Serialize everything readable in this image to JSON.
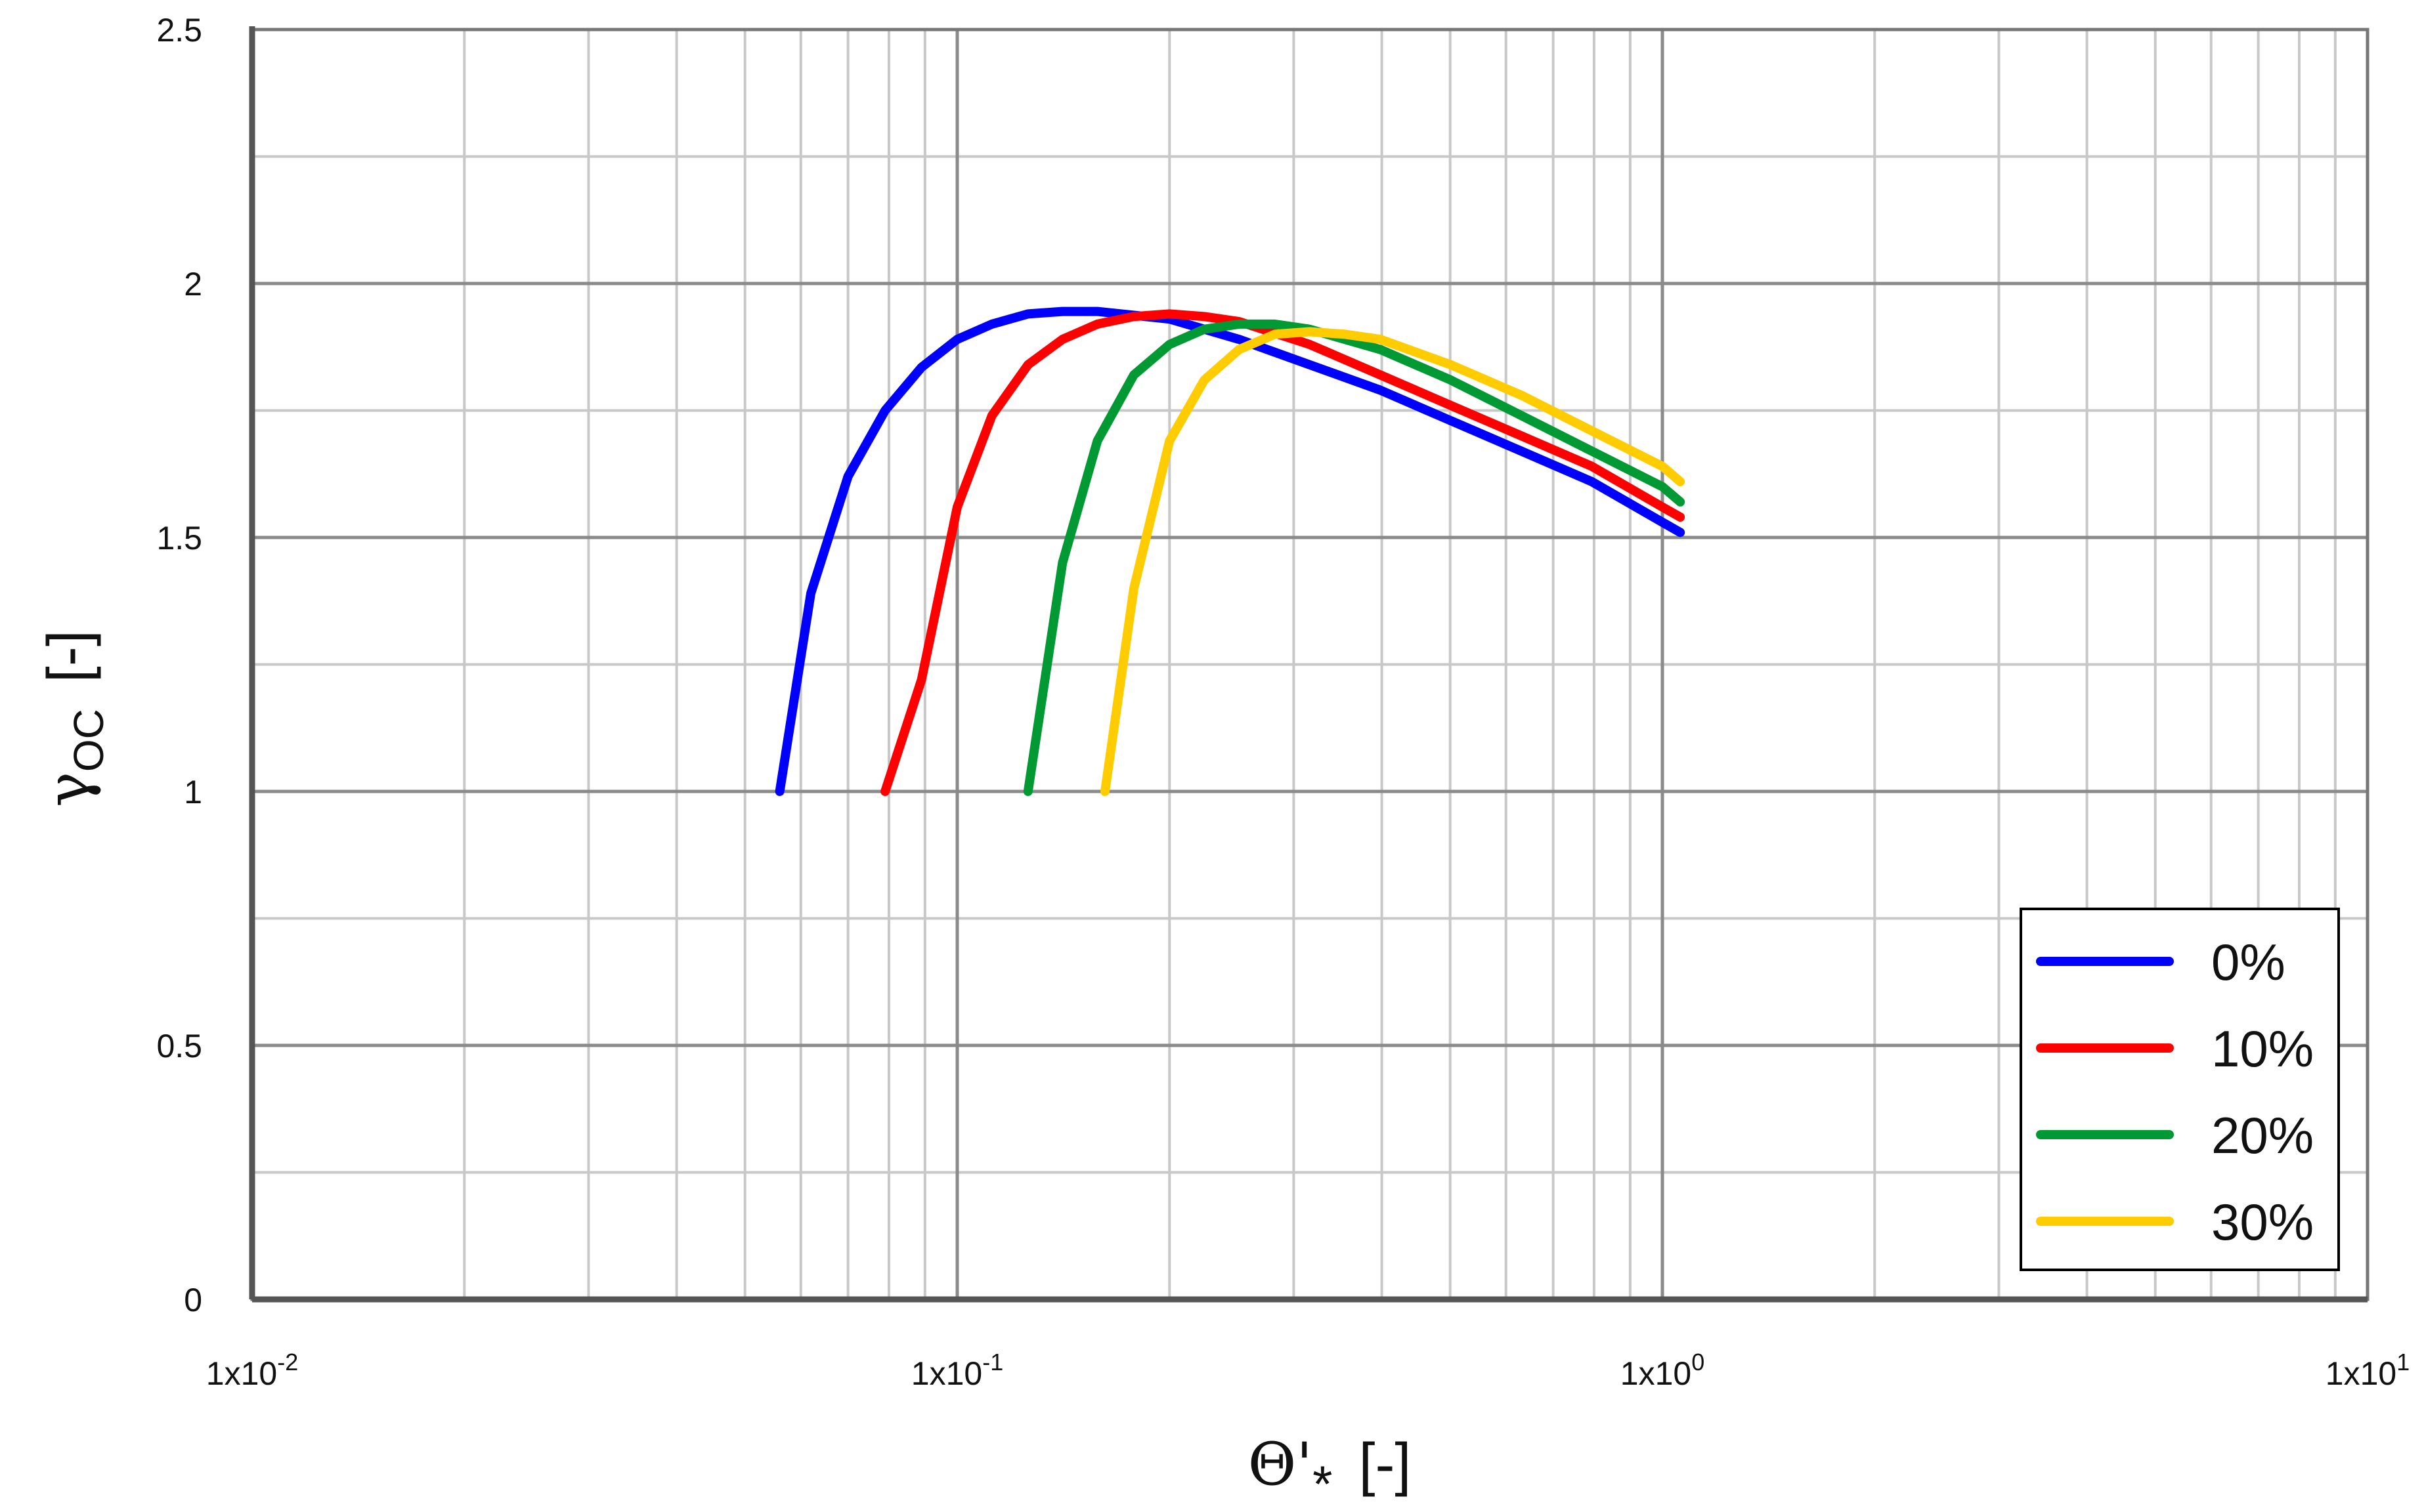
{
  "chart_data": {
    "type": "line",
    "xscale": "log",
    "xlim": [
      0.01,
      10
    ],
    "ylim": [
      0,
      2.5
    ],
    "grid": true,
    "legend_position": "bottom-right",
    "ylabel": {
      "symbol": "γ",
      "sub": "OC",
      "unit": "[-]"
    },
    "xlabel": {
      "symbol": "Θ'",
      "sub": "*",
      "unit": "[-]"
    },
    "x_ticks": [
      {
        "value": 0.01,
        "base": "1x10",
        "exp": "-2"
      },
      {
        "value": 0.1,
        "base": "1x10",
        "exp": "-1"
      },
      {
        "value": 1,
        "base": "1x10",
        "exp": "0"
      },
      {
        "value": 10,
        "base": "1x10",
        "exp": "1"
      }
    ],
    "y_ticks": [
      {
        "value": 0,
        "label": "0"
      },
      {
        "value": 0.5,
        "label": "0.5"
      },
      {
        "value": 1,
        "label": "1"
      },
      {
        "value": 1.5,
        "label": "1.5"
      },
      {
        "value": 2,
        "label": "2"
      },
      {
        "value": 2.5,
        "label": "2.5"
      }
    ],
    "series": [
      {
        "name": "0%",
        "color": "#0000ff",
        "x": [
          0.056,
          0.062,
          0.07,
          0.079,
          0.089,
          0.1,
          0.112,
          0.126,
          0.141,
          0.158,
          0.2,
          0.251,
          0.316,
          0.398,
          0.501,
          0.631,
          0.794,
          1.0,
          1.06
        ],
        "y": [
          1.0,
          1.39,
          1.62,
          1.75,
          1.835,
          1.89,
          1.92,
          1.94,
          1.945,
          1.945,
          1.93,
          1.89,
          1.84,
          1.79,
          1.73,
          1.67,
          1.61,
          1.53,
          1.51
        ]
      },
      {
        "name": "10%",
        "color": "#ff0000",
        "x": [
          0.079,
          0.089,
          0.1,
          0.112,
          0.126,
          0.141,
          0.158,
          0.178,
          0.2,
          0.224,
          0.251,
          0.316,
          0.398,
          0.501,
          0.631,
          0.794,
          1.0,
          1.06
        ],
        "y": [
          1.0,
          1.22,
          1.56,
          1.74,
          1.84,
          1.89,
          1.92,
          1.935,
          1.94,
          1.935,
          1.925,
          1.88,
          1.82,
          1.76,
          1.7,
          1.64,
          1.56,
          1.54
        ]
      },
      {
        "name": "20%",
        "color": "#009933",
        "x": [
          0.126,
          0.141,
          0.158,
          0.178,
          0.2,
          0.224,
          0.251,
          0.282,
          0.316,
          0.398,
          0.501,
          0.631,
          0.794,
          1.0,
          1.06
        ],
        "y": [
          1.0,
          1.45,
          1.69,
          1.82,
          1.88,
          1.91,
          1.92,
          1.92,
          1.91,
          1.87,
          1.81,
          1.74,
          1.67,
          1.6,
          1.57
        ]
      },
      {
        "name": "30%",
        "color": "#ffcc00",
        "x": [
          0.162,
          0.178,
          0.2,
          0.224,
          0.251,
          0.282,
          0.316,
          0.355,
          0.398,
          0.501,
          0.631,
          0.794,
          1.0,
          1.06
        ],
        "y": [
          1.0,
          1.4,
          1.69,
          1.81,
          1.87,
          1.9,
          1.905,
          1.9,
          1.89,
          1.84,
          1.78,
          1.71,
          1.64,
          1.61
        ]
      }
    ]
  }
}
